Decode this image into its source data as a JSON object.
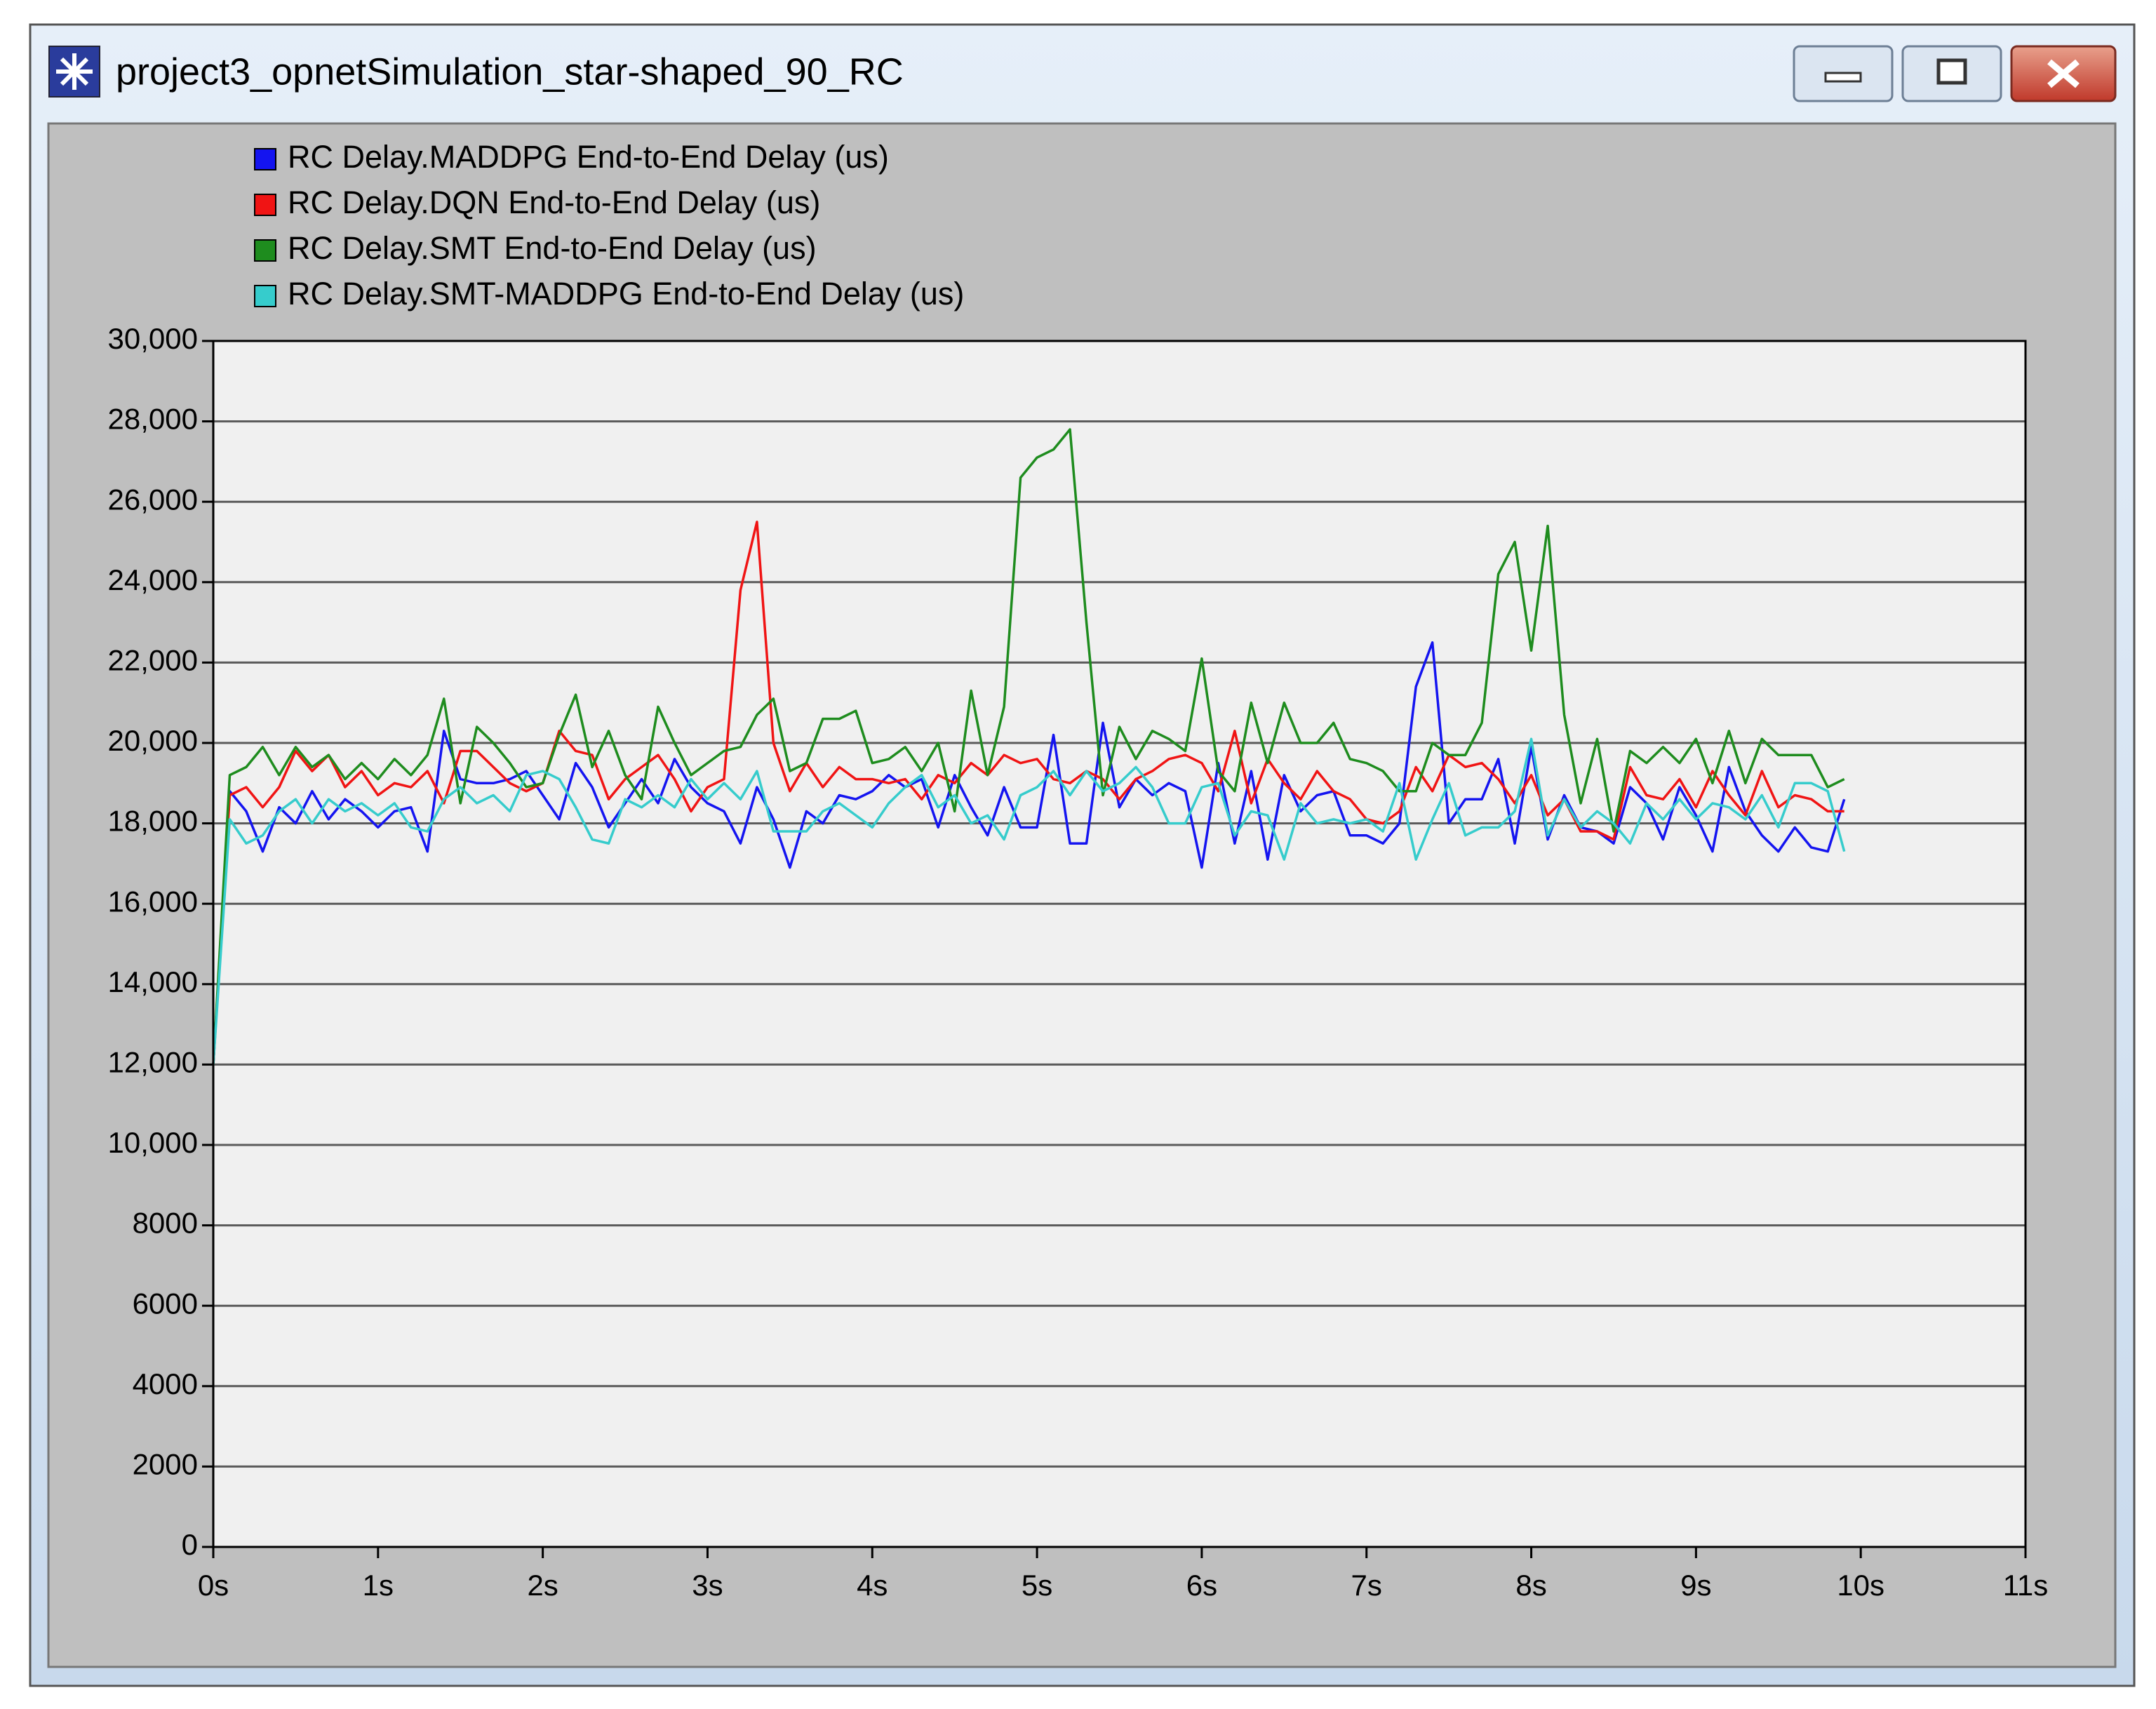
{
  "window": {
    "title": "project3_opnetSimulation_star-shaped_90_RC"
  },
  "chart_data": {
    "type": "line",
    "x": [
      0,
      0.1,
      0.2,
      0.3,
      0.4,
      0.5,
      0.6,
      0.7,
      0.8,
      0.9,
      1,
      1.1,
      1.2,
      1.3,
      1.4,
      1.5,
      1.6,
      1.7,
      1.8,
      1.9,
      2,
      2.1,
      2.2,
      2.3,
      2.4,
      2.5,
      2.6,
      2.7,
      2.8,
      2.9,
      3,
      3.1,
      3.2,
      3.3,
      3.4,
      3.5,
      3.6,
      3.7,
      3.8,
      3.9,
      4,
      4.1,
      4.2,
      4.3,
      4.4,
      4.5,
      4.6,
      4.7,
      4.8,
      4.9,
      5,
      5.1,
      5.2,
      5.3,
      5.4,
      5.5,
      5.6,
      5.7,
      5.8,
      5.9,
      6,
      6.1,
      6.2,
      6.3,
      6.4,
      6.5,
      6.6,
      6.7,
      6.8,
      6.9,
      7,
      7.1,
      7.2,
      7.3,
      7.4,
      7.5,
      7.6,
      7.7,
      7.8,
      7.9,
      8,
      8.1,
      8.2,
      8.3,
      8.4,
      8.5,
      8.6,
      8.7,
      8.8,
      8.9,
      9,
      9.1,
      9.2,
      9.3,
      9.4,
      9.5,
      9.6,
      9.7,
      9.8,
      9.9
    ],
    "series": [
      {
        "name": "RC Delay.MADDPG End-to-End Delay (us)",
        "color": "#1414f0",
        "values": [
          12000,
          18800,
          18300,
          17300,
          18400,
          18000,
          18800,
          18100,
          18600,
          18300,
          17900,
          18300,
          18400,
          17300,
          20300,
          19100,
          19000,
          19000,
          19100,
          19300,
          18700,
          18100,
          19500,
          18900,
          17900,
          18500,
          19100,
          18500,
          19600,
          18900,
          18500,
          18300,
          17500,
          18900,
          18100,
          16900,
          18300,
          18000,
          18700,
          18600,
          18800,
          19200,
          18900,
          19100,
          17900,
          19200,
          18400,
          17700,
          18900,
          17900,
          17900,
          20200,
          17500,
          17500,
          20500,
          18400,
          19100,
          18700,
          19000,
          18800,
          16900,
          19500,
          17500,
          19300,
          17100,
          19200,
          18300,
          18700,
          18800,
          17700,
          17700,
          17500,
          18000,
          21400,
          22500,
          18000,
          18600,
          18600,
          19600,
          17500,
          19900,
          17600,
          18700,
          17900,
          17800,
          17500,
          18900,
          18500,
          17600,
          18900,
          18200,
          17300,
          19400,
          18300,
          17700,
          17300,
          17900,
          17400,
          17300,
          18600
        ]
      },
      {
        "name": "RC Delay.DQN End-to-End Delay (us)",
        "color": "#f01414",
        "values": [
          12000,
          18700,
          18900,
          18400,
          18900,
          19800,
          19300,
          19700,
          18900,
          19300,
          18700,
          19000,
          18900,
          19300,
          18500,
          19800,
          19800,
          19400,
          19000,
          18800,
          19000,
          20300,
          19800,
          19700,
          18600,
          19100,
          19400,
          19700,
          19100,
          18300,
          18900,
          19100,
          23800,
          25500,
          20000,
          18800,
          19500,
          18900,
          19400,
          19100,
          19100,
          19000,
          19100,
          18600,
          19200,
          19000,
          19500,
          19200,
          19700,
          19500,
          19600,
          19100,
          19000,
          19300,
          19100,
          18600,
          19100,
          19300,
          19600,
          19700,
          19500,
          18800,
          20300,
          18500,
          19600,
          19000,
          18600,
          19300,
          18800,
          18600,
          18100,
          18000,
          18300,
          19400,
          18800,
          19700,
          19400,
          19500,
          19100,
          18500,
          19200,
          18200,
          18600,
          17800,
          17800,
          17600,
          19400,
          18700,
          18600,
          19100,
          18400,
          19300,
          18700,
          18200,
          19300,
          18400,
          18700,
          18600,
          18300,
          18300
        ]
      },
      {
        "name": "RC Delay.SMT End-to-End Delay (us)",
        "color": "#1e8c1e",
        "values": [
          12000,
          19200,
          19400,
          19900,
          19200,
          19900,
          19400,
          19700,
          19100,
          19500,
          19100,
          19600,
          19200,
          19700,
          21100,
          18500,
          20400,
          20000,
          19500,
          18900,
          19000,
          20200,
          21200,
          19400,
          20300,
          19200,
          18600,
          20900,
          20000,
          19200,
          19500,
          19800,
          19900,
          20700,
          21100,
          19300,
          19500,
          20600,
          20600,
          20800,
          19500,
          19600,
          19900,
          19300,
          20000,
          18300,
          21300,
          19200,
          20900,
          26600,
          27100,
          27300,
          27800,
          23000,
          18700,
          20400,
          19600,
          20300,
          20100,
          19800,
          22100,
          19300,
          18800,
          21000,
          19500,
          21000,
          20000,
          20000,
          20500,
          19600,
          19500,
          19300,
          18800,
          18800,
          20000,
          19700,
          19700,
          20500,
          24200,
          25000,
          22300,
          25400,
          20700,
          18500,
          20100,
          17800,
          19800,
          19500,
          19900,
          19500,
          20100,
          19000,
          20300,
          19000,
          20100,
          19700,
          19700,
          19700,
          18900,
          19100
        ]
      },
      {
        "name": "RC Delay.SMT-MADDPG End-to-End Delay (us)",
        "color": "#36cccc",
        "values": [
          12000,
          18100,
          17500,
          17700,
          18300,
          18600,
          18000,
          18600,
          18300,
          18500,
          18200,
          18500,
          17900,
          17800,
          18600,
          18900,
          18500,
          18700,
          18300,
          19200,
          19300,
          19100,
          18400,
          17600,
          17500,
          18600,
          18400,
          18700,
          18400,
          19100,
          18600,
          19000,
          18600,
          19300,
          17800,
          17800,
          17800,
          18300,
          18500,
          18200,
          17900,
          18500,
          18900,
          19200,
          18400,
          18700,
          18000,
          18200,
          17600,
          18700,
          18900,
          19300,
          18700,
          19300,
          18800,
          19000,
          19400,
          18900,
          18000,
          18000,
          18900,
          19000,
          17700,
          18300,
          18200,
          17100,
          18500,
          18000,
          18100,
          18000,
          18100,
          17800,
          19000,
          17100,
          18100,
          19000,
          17700,
          17900,
          17900,
          18300,
          20100,
          17700,
          18600,
          17900,
          18300,
          18000,
          17500,
          18500,
          18100,
          18600,
          18100,
          18500,
          18400,
          18100,
          18700,
          17900,
          19000,
          19000,
          18800,
          17300
        ]
      }
    ],
    "xlim": [
      0,
      11
    ],
    "xticks": [
      {
        "value": 0,
        "label": "0s"
      },
      {
        "value": 1,
        "label": "1s"
      },
      {
        "value": 2,
        "label": "2s"
      },
      {
        "value": 3,
        "label": "3s"
      },
      {
        "value": 4,
        "label": "4s"
      },
      {
        "value": 5,
        "label": "5s"
      },
      {
        "value": 6,
        "label": "6s"
      },
      {
        "value": 7,
        "label": "7s"
      },
      {
        "value": 8,
        "label": "8s"
      },
      {
        "value": 9,
        "label": "9s"
      },
      {
        "value": 10,
        "label": "10s"
      },
      {
        "value": 11,
        "label": "11s"
      }
    ],
    "ylim": [
      0,
      30000
    ],
    "yticks": [
      0,
      2000,
      4000,
      6000,
      8000,
      {
        "value": 10000,
        "label": "10,000"
      },
      {
        "value": 12000,
        "label": "12,000"
      },
      {
        "value": 14000,
        "label": "14,000"
      },
      {
        "value": 16000,
        "label": "16,000"
      },
      {
        "value": 18000,
        "label": "18,000"
      },
      {
        "value": 20000,
        "label": "20,000"
      },
      {
        "value": 22000,
        "label": "22,000"
      },
      {
        "value": 24000,
        "label": "24,000"
      },
      {
        "value": 26000,
        "label": "26,000"
      },
      {
        "value": 28000,
        "label": "28,000"
      },
      {
        "value": 30000,
        "label": "30,000"
      }
    ],
    "grid": true
  }
}
